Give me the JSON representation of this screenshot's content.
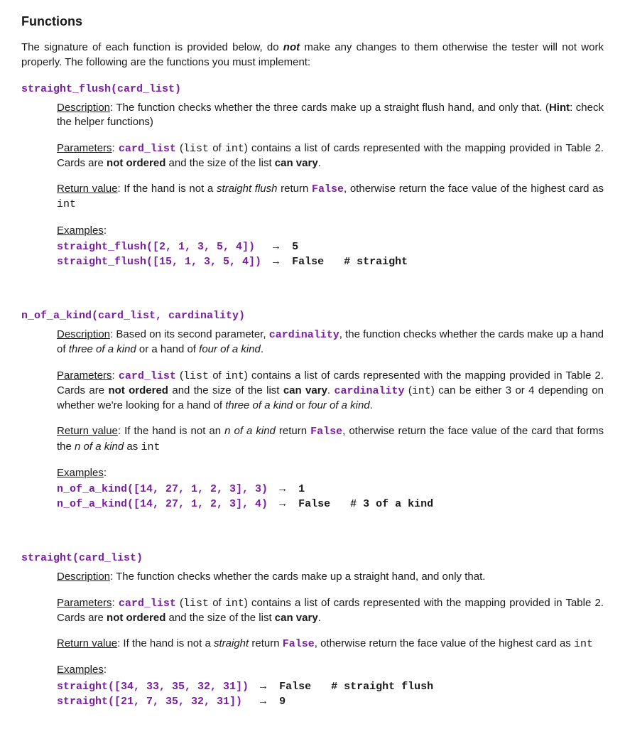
{
  "colors": {
    "keyword": "#7b1fa2",
    "text": "#1a1a1a",
    "background": "#ffffff"
  },
  "title": "Functions",
  "intro": {
    "pre": "The signature of each function is provided below, do ",
    "emph": "not",
    "post": " make any changes to them otherwise the tester will not work properly. The following are the functions you must implement:"
  },
  "functions": [
    {
      "signature": "straight_flush(card_list)",
      "description_html": "<span class=\"label\">Description</span>: The function checks whether the three cards make up a straight flush hand, and only that. (<strong>Hint</strong>: check the helper functions)",
      "parameters_html": "<span class=\"label\">Parameters</span>: <span class=\"code kw\">card_list</span> (<span class=\"code\">list</span> of <span class=\"code\">int</span>) contains a list of cards represented with the mapping provided in Table 2. Cards are <strong>not ordered</strong> and the size of the list <strong>can vary</strong>.",
      "return_html": "<span class=\"label\">Return value</span>: If the hand is not a <em>straight flush</em> return <span class=\"code kw\">False</span>, otherwise return the face value of the highest card as <span class=\"code\">int</span>",
      "examples_label": "Examples",
      "examples": [
        {
          "call": "straight_flush([2, 1, 3, 5, 4])",
          "arrow": "→",
          "result": "5",
          "comment": ""
        },
        {
          "call": "straight_flush([15, 1, 3, 5, 4])",
          "arrow": "→",
          "result": "False",
          "comment": "# straight"
        }
      ]
    },
    {
      "signature": "n_of_a_kind(card_list, cardinality)",
      "description_html": "<span class=\"label\">Description</span>: Based on its second parameter, <span class=\"code kw\">cardinality</span>, the function checks whether the cards make up a hand of <em>three of a kind</em> or a hand of <em>four of a kind</em>.",
      "parameters_html": "<span class=\"label\">Parameters</span>: <span class=\"code kw\">card_list</span> (<span class=\"code\">list</span> of <span class=\"code\">int</span>) contains a list of cards represented with the mapping provided in Table 2. Cards are <strong>not ordered</strong> and the size of the list <strong>can vary</strong>. <span class=\"code kw\">cardinality</span> (<span class=\"code\">int</span>) can be either 3 or 4 depending on whether we're looking for a hand of <em>three of a kind</em> or <em>four of a kind</em>.",
      "return_html": "<span class=\"label\">Return value</span>: If the hand is not an <em>n of a kind</em> return <span class=\"code kw\">False</span>, otherwise return the face value of the card that forms the <em>n of a kind</em> as <span class=\"code\">int</span>",
      "examples_label": "Examples",
      "examples": [
        {
          "call": "n_of_a_kind([14, 27, 1, 2, 3], 3)",
          "arrow": "→",
          "result": "1",
          "comment": ""
        },
        {
          "call": "n_of_a_kind([14, 27, 1, 2, 3], 4)",
          "arrow": "→",
          "result": "False",
          "comment": "# 3 of a kind"
        }
      ]
    },
    {
      "signature": "straight(card_list)",
      "description_html": "<span class=\"label\">Description</span>: The function checks whether the cards make up a straight hand, and only that.",
      "parameters_html": "<span class=\"label\">Parameters</span>: <span class=\"code kw\">card_list</span> (<span class=\"code\">list</span> of <span class=\"code\">int</span>) contains a list of cards represented with the mapping provided in Table 2. Cards are <strong>not ordered</strong> and the size of the list <strong>can vary</strong>.",
      "return_html": "<span class=\"label\">Return value</span>: If the hand is not a <em>straight</em> return <span class=\"code kw\">False</span>, otherwise return the face value of the highest card as <span class=\"code\">int</span>",
      "examples_label": "Examples",
      "examples": [
        {
          "call": "straight([34, 33, 35, 32, 31])",
          "arrow": "→",
          "result": "False",
          "comment": "# straight flush"
        },
        {
          "call": "straight([21, 7, 35, 32, 31])",
          "arrow": "→",
          "result": "9",
          "comment": ""
        }
      ]
    }
  ]
}
